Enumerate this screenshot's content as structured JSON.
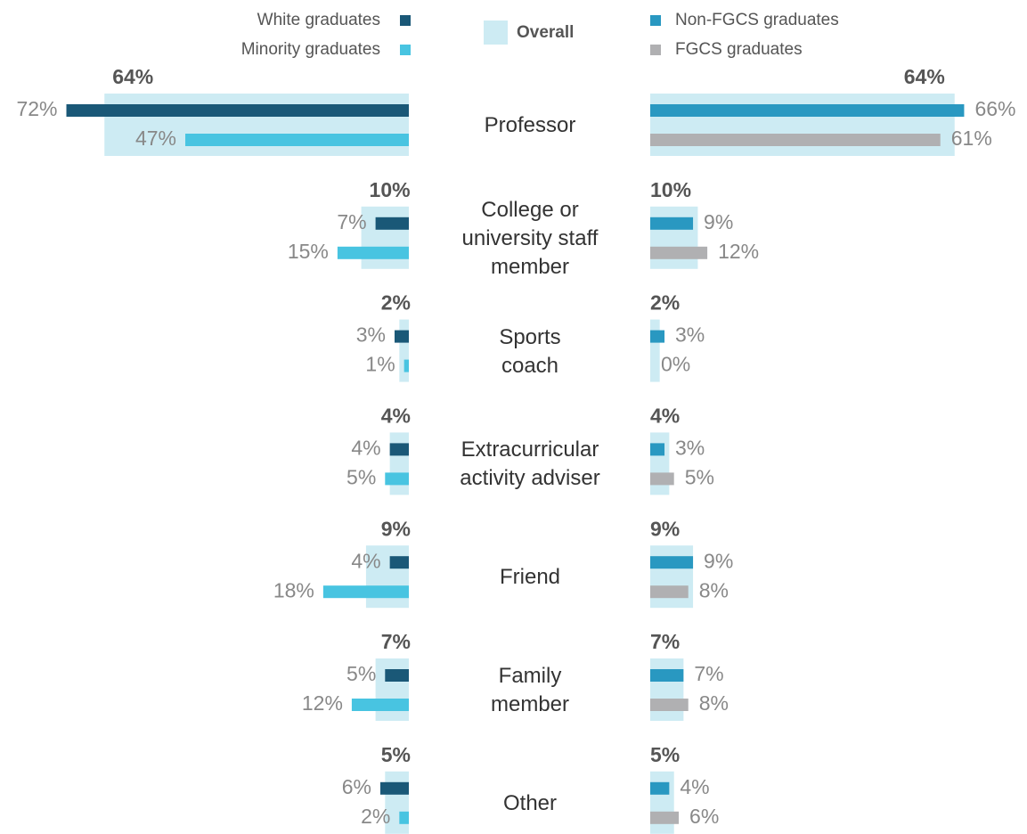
{
  "chart_data": {
    "type": "bar",
    "categories": [
      "Professor",
      "College or\nuniversity staff\nmember",
      "Sports\ncoach",
      "Extracurricular\nactivity adviser",
      "Friend",
      "Family\nmember",
      "Other"
    ],
    "series": [
      {
        "name": "Overall",
        "color": "#cdebf3",
        "values": [
          64,
          10,
          2,
          4,
          9,
          7,
          5
        ],
        "value_labels": [
          "64%",
          "10%",
          "2%",
          "4%",
          "9%",
          "7%",
          "5%"
        ]
      },
      {
        "name": "White graduates",
        "color": "#1a5877",
        "values": [
          72,
          7,
          3,
          4,
          4,
          5,
          6
        ],
        "value_labels": [
          "72%",
          "7%",
          "3%",
          "4%",
          "4%",
          "5%",
          "6%"
        ]
      },
      {
        "name": "Minority graduates",
        "color": "#48c4e1",
        "values": [
          47,
          15,
          1,
          5,
          18,
          12,
          2
        ],
        "value_labels": [
          "47%",
          "15%",
          "1%",
          "5%",
          "18%",
          "12%",
          "2%"
        ]
      },
      {
        "name": "Non-FGCS graduates",
        "color": "#2998c1",
        "values": [
          66,
          9,
          3,
          3,
          9,
          7,
          4
        ],
        "value_labels": [
          "66%",
          "9%",
          "3%",
          "3%",
          "9%",
          "7%",
          "4%"
        ]
      },
      {
        "name": "FGCS graduates",
        "color": "#b0b0b2",
        "values": [
          61,
          12,
          0,
          5,
          8,
          8,
          6
        ],
        "value_labels": [
          "61%",
          "12%",
          "0%",
          "5%",
          "8%",
          "8%",
          "6%"
        ]
      }
    ]
  }
}
